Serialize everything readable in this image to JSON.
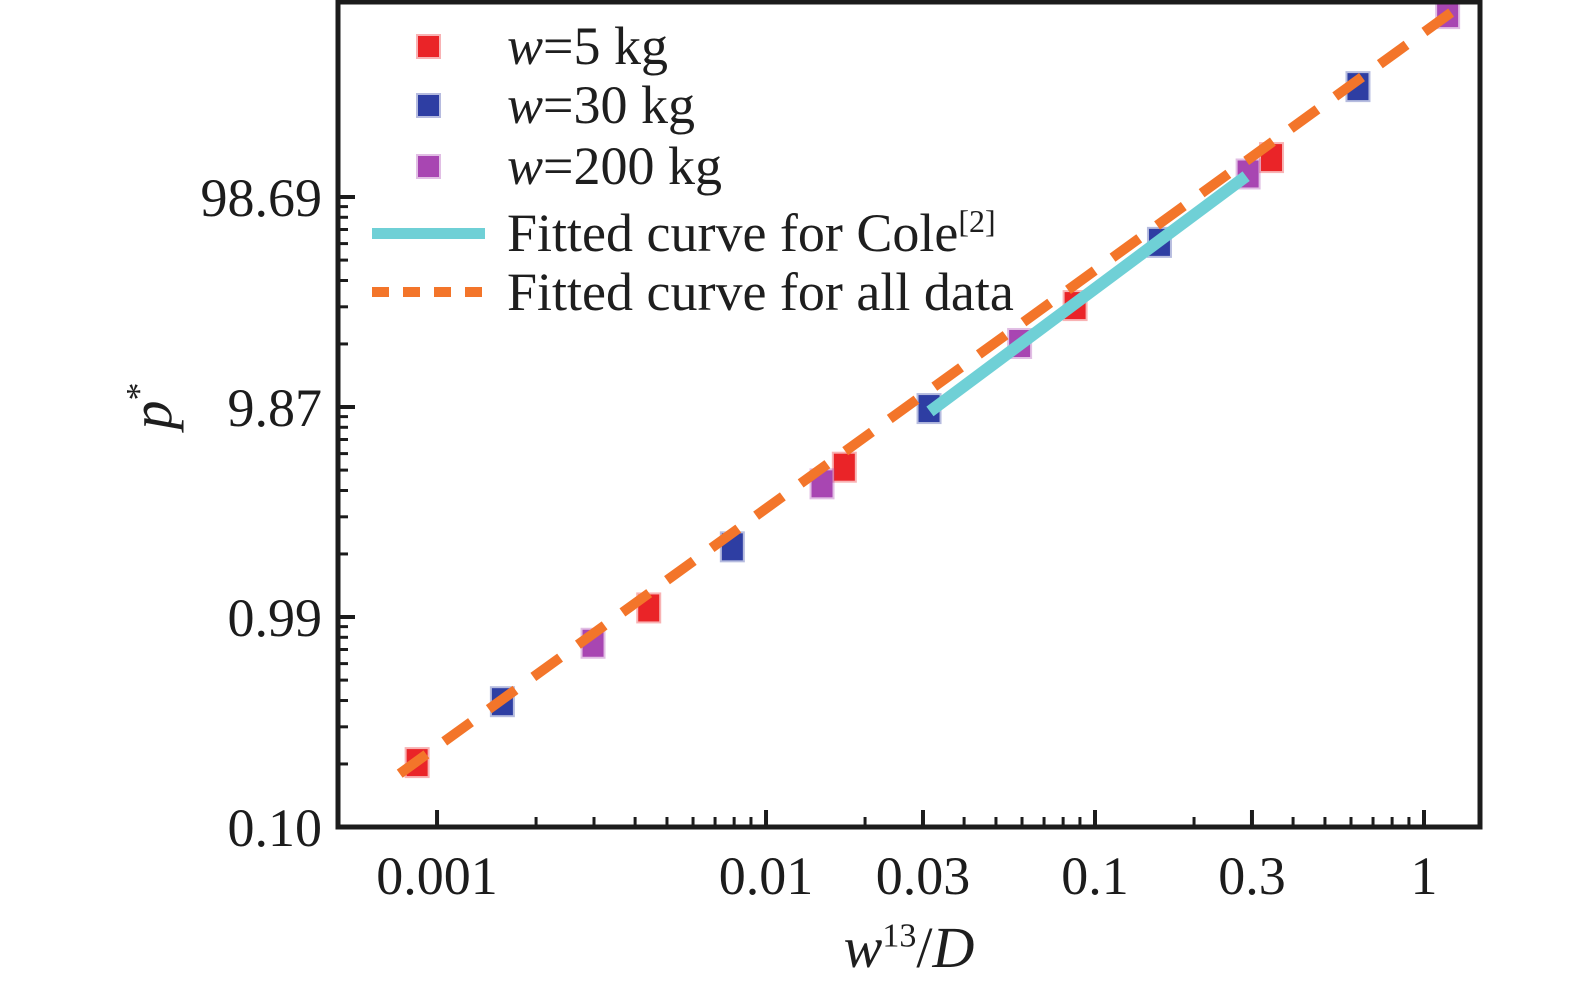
{
  "chart_data": {
    "type": "scatter",
    "title": "",
    "xlabel": "w13/D",
    "xlabel_parts": {
      "base": "w",
      "sup": "13",
      "slash": "/",
      "denom": "D"
    },
    "ylabel": "p*",
    "ylabel_parts": {
      "base": "p",
      "sup": "*"
    },
    "grid": false,
    "x_axis": {
      "scale": "log",
      "range": [
        0.0005,
        1.48
      ],
      "major_ticks": [
        0.001,
        0.01,
        0.03,
        0.1,
        0.3,
        1
      ],
      "tick_labels": [
        "0.001",
        "0.01",
        "0.03",
        "0.1",
        "0.3",
        "1"
      ],
      "minor_ticks": [
        0.002,
        0.003,
        0.004,
        0.005,
        0.006,
        0.007,
        0.008,
        0.009,
        0.02,
        0.04,
        0.05,
        0.06,
        0.07,
        0.08,
        0.09,
        0.2,
        0.4,
        0.5,
        0.6,
        0.7,
        0.8,
        0.9
      ]
    },
    "y_axis": {
      "scale": "log",
      "range": [
        0.0987,
        837
      ],
      "major_ticks": [
        0.0987,
        0.987,
        9.87,
        98.69
      ],
      "tick_labels": [
        "0.10",
        "0.99",
        "9.87",
        "98.69"
      ],
      "minor_ticks": [
        0.197,
        0.296,
        0.395,
        0.494,
        0.592,
        0.691,
        0.79,
        0.888,
        1.97,
        2.96,
        3.95,
        4.94,
        5.92,
        6.91,
        7.9,
        8.88,
        19.7,
        29.6,
        39.5,
        49.4,
        59.2,
        69.1,
        79.0,
        88.8
      ]
    },
    "series": [
      {
        "name": "w=5 kg",
        "marker": "square",
        "color": "#ea2428",
        "points": [
          [
            0.00087,
            0.2
          ],
          [
            0.0044,
            1.09
          ],
          [
            0.0173,
            5.1
          ],
          [
            0.087,
            30
          ],
          [
            0.344,
            152
          ]
        ]
      },
      {
        "name": "w=30 kg",
        "marker": "square",
        "color": "#2e3ea3",
        "points": [
          [
            0.00158,
            0.39
          ],
          [
            0.0079,
            2.13
          ],
          [
            0.0313,
            9.7
          ],
          [
            0.157,
            60
          ],
          [
            0.63,
            331
          ]
        ]
      },
      {
        "name": "w=200 kg",
        "marker": "square",
        "color": "#a846b2",
        "points": [
          [
            0.00298,
            0.74
          ],
          [
            0.0148,
            4.25
          ],
          [
            0.059,
            19.8
          ],
          [
            0.292,
            127
          ],
          [
            1.18,
            737
          ]
        ]
      }
    ],
    "fit_lines": [
      {
        "name": "Fitted curve for Cole[2]",
        "style": "solid",
        "color": "#6fd0d6",
        "from": [
          0.0315,
          9.4
        ],
        "to": [
          0.288,
          124
        ]
      },
      {
        "name": "Fitted curve for all data",
        "style": "dashed",
        "color": "#f3752a",
        "from": [
          0.00077,
          0.177
        ],
        "to": [
          1.216,
          750
        ]
      }
    ],
    "legend": {
      "position": "top-left",
      "items": [
        {
          "var": "w",
          "text": "=5 kg",
          "swatch": "square",
          "color": "#ea2428"
        },
        {
          "var": "w",
          "text": "=30 kg",
          "swatch": "square",
          "color": "#2e3ea3"
        },
        {
          "var": "w",
          "text": "=200 kg",
          "swatch": "square",
          "color": "#a846b2"
        },
        {
          "text": "Fitted curve for Cole",
          "sup": "[2]",
          "swatch": "solid-line",
          "color": "#6fd0d6"
        },
        {
          "text": "Fitted curve for all data",
          "swatch": "dashed-line",
          "color": "#f3752a"
        }
      ]
    }
  }
}
